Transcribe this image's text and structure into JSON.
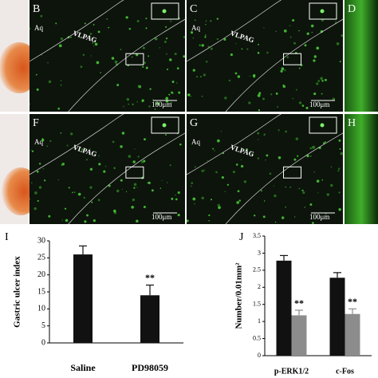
{
  "panels": [
    {
      "letter": "B",
      "aq": "Aq",
      "region": "VLPAG",
      "scale": "100μm"
    },
    {
      "letter": "C",
      "aq": "Aq",
      "region": "VLPAG",
      "scale": "100μm"
    },
    {
      "letter": "D"
    },
    {
      "letter": "F",
      "aq": "Aq",
      "region": "VLPAG",
      "scale": "100μm"
    },
    {
      "letter": "G",
      "aq": "Aq",
      "region": "VLPAG",
      "scale": "100μm"
    },
    {
      "letter": "H"
    }
  ],
  "chart_data": [
    {
      "type": "bar",
      "panel": "I",
      "ylabel": "Gastric ulcer index",
      "categories": [
        "Saline",
        "PD98059"
      ],
      "values": [
        26,
        14
      ],
      "errors": [
        2.5,
        3
      ],
      "significance": [
        null,
        "**"
      ],
      "color": "#111111",
      "ylim": [
        0,
        30
      ],
      "yticks": [
        0,
        5,
        10,
        15,
        20,
        25,
        30
      ]
    },
    {
      "type": "grouped_bar",
      "panel": "J",
      "ylabel": "Number/0.01mm²",
      "categories": [
        "p-ERK1/2",
        "c-Fos"
      ],
      "series": [
        {
          "color": "#111111",
          "values": [
            2.78,
            2.28
          ],
          "errors": [
            0.15,
            0.15
          ],
          "significance": [
            null,
            null
          ]
        },
        {
          "color": "#8c8c8c",
          "values": [
            1.18,
            1.22
          ],
          "errors": [
            0.15,
            0.15
          ],
          "significance": [
            "**",
            "**"
          ]
        }
      ],
      "ylim": [
        0,
        3.5
      ],
      "yticks": [
        0,
        0.5,
        1,
        1.5,
        2,
        2.5,
        3,
        3.5
      ]
    }
  ]
}
